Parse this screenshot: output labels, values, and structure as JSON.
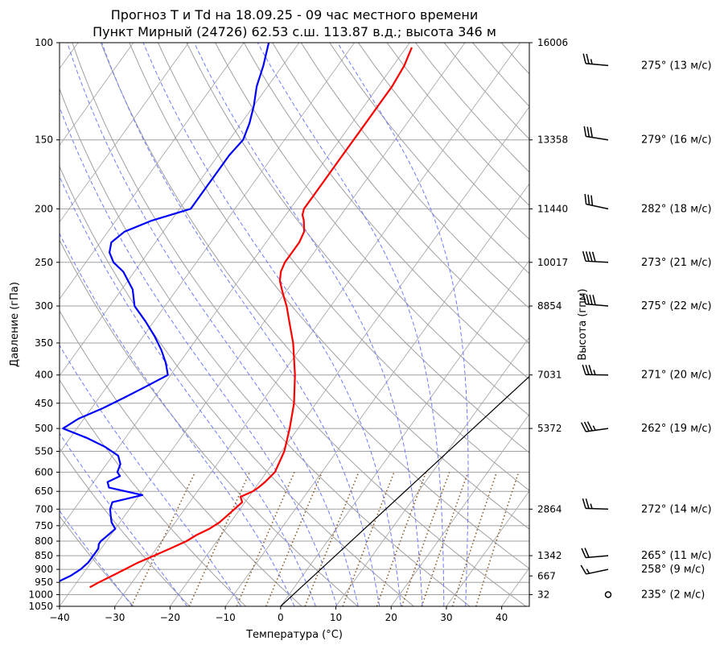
{
  "title_line1": "Прогноз T и Td на 18.09.25 - 09 час местного времени",
  "title_line2": "Пункт Мирный (24726) 62.53 с.ш. 113.87 в.д.; высота 346 м",
  "colors": {
    "temperature": "#ff0000",
    "dewpoint": "#0000ff",
    "dry_adiabats": "#a0a0a0",
    "moist_adiabats": "#6f7bff",
    "mixing_ratio": "#8b5a2b",
    "parcel": "#000000",
    "wind_text": "#808080"
  },
  "chart_data": {
    "type": "line",
    "subtype": "skew-T log-p sounding",
    "xlabel": "Температура (°C)",
    "ylabel": "Давление (гПа)",
    "y2label": "Высота (гпм)",
    "xlim": [
      -40,
      45
    ],
    "ylim": [
      1050,
      100
    ],
    "y_scale": "log",
    "grid": true,
    "x_ticks": [
      -40,
      -30,
      -20,
      -10,
      0,
      10,
      20,
      30,
      40
    ],
    "p_ticks": [
      100,
      150,
      200,
      250,
      300,
      350,
      400,
      450,
      500,
      550,
      600,
      650,
      700,
      750,
      800,
      850,
      900,
      950,
      1000,
      1050
    ],
    "height_ticks": [
      {
        "p": 100,
        "h": "16006"
      },
      {
        "p": 150,
        "h": "13358"
      },
      {
        "p": 200,
        "h": "11440"
      },
      {
        "p": 250,
        "h": "10017"
      },
      {
        "p": 300,
        "h": "8854"
      },
      {
        "p": 400,
        "h": "7031"
      },
      {
        "p": 500,
        "h": "5372"
      },
      {
        "p": 700,
        "h": "2864"
      },
      {
        "p": 850,
        "h": "1342"
      },
      {
        "p": 925,
        "h": "667"
      },
      {
        "p": 1000,
        "h": "32"
      }
    ],
    "series": [
      {
        "key": "temperature",
        "p": [
          970,
          960,
          950,
          925,
          900,
          875,
          850,
          825,
          800,
          780,
          760,
          740,
          720,
          700,
          680,
          665,
          650,
          640,
          625,
          600,
          550,
          500,
          450,
          400,
          350,
          320,
          300,
          290,
          280,
          270,
          260,
          250,
          240,
          230,
          220,
          210,
          205,
          200,
          195,
          190,
          180,
          170,
          160,
          150,
          140,
          130,
          120,
          110,
          102
        ],
        "t": [
          -37.0,
          -36.5,
          -36.0,
          -34.5,
          -33.0,
          -31.5,
          -29.5,
          -27.5,
          -25.5,
          -24.5,
          -23.0,
          -22.0,
          -21.5,
          -21.0,
          -20.5,
          -21.5,
          -20.0,
          -19.5,
          -19.0,
          -18.5,
          -19.5,
          -21.5,
          -24.0,
          -27.5,
          -32.0,
          -35.5,
          -38.0,
          -39.5,
          -41.0,
          -42.5,
          -43.5,
          -44.0,
          -44.0,
          -44.0,
          -44.5,
          -46.0,
          -47.0,
          -47.5,
          -47.5,
          -47.5,
          -47.5,
          -47.5,
          -47.5,
          -47.5,
          -47.5,
          -47.5,
          -47.5,
          -48.0,
          -49.0
        ]
      },
      {
        "key": "dewpoint",
        "p": [
          960,
          950,
          940,
          925,
          900,
          875,
          850,
          825,
          810,
          800,
          780,
          760,
          740,
          720,
          700,
          680,
          660,
          640,
          625,
          610,
          600,
          580,
          560,
          540,
          520,
          500,
          480,
          460,
          440,
          420,
          400,
          380,
          360,
          340,
          320,
          300,
          280,
          260,
          250,
          240,
          230,
          220,
          210,
          200,
          190,
          180,
          170,
          160,
          150,
          140,
          130,
          120,
          110,
          100
        ],
        "t": [
          -44.0,
          -43.5,
          -43.0,
          -42.0,
          -41.0,
          -40.5,
          -40.5,
          -40.5,
          -41.0,
          -41.0,
          -40.5,
          -40.0,
          -41.5,
          -42.5,
          -43.5,
          -44.0,
          -39.5,
          -46.5,
          -47.5,
          -46.0,
          -47.0,
          -47.5,
          -49.0,
          -52.5,
          -57.0,
          -62.5,
          -61.0,
          -58.0,
          -55.5,
          -53.0,
          -50.5,
          -52.5,
          -55.0,
          -58.0,
          -61.5,
          -65.5,
          -68.0,
          -72.0,
          -75.0,
          -77.0,
          -78.0,
          -77.0,
          -73.5,
          -68.0,
          -68.0,
          -68.0,
          -68.0,
          -68.0,
          -67.5,
          -68.5,
          -70.0,
          -72.0,
          -73.5,
          -75.5
        ]
      }
    ],
    "parcel": {
      "p": [
        1050,
        100
      ],
      "t": [
        0.0,
        37.0
      ]
    },
    "winds": [
      {
        "p": 110,
        "text": "275° (13 м/с)"
      },
      {
        "p": 150,
        "text": "279° (16 м/с)"
      },
      {
        "p": 200,
        "text": "282° (18 м/с)"
      },
      {
        "p": 250,
        "text": "273° (21 м/с)"
      },
      {
        "p": 300,
        "text": "275° (22 м/с)"
      },
      {
        "p": 400,
        "text": "271° (20 м/с)"
      },
      {
        "p": 500,
        "text": "262° (19 м/с)"
      },
      {
        "p": 700,
        "text": "272° (14 м/с)"
      },
      {
        "p": 850,
        "text": "265° (11 м/с)"
      },
      {
        "p": 900,
        "text": "258° (9 м/с)"
      },
      {
        "p": 1000,
        "text": "235° (2 м/с)"
      }
    ]
  }
}
